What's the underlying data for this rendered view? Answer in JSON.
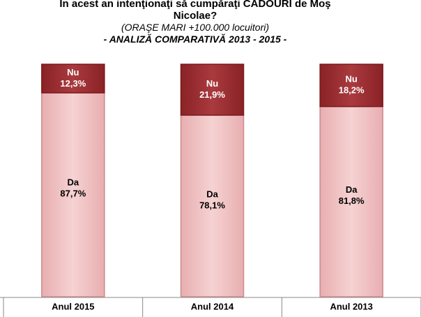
{
  "chart_data": {
    "type": "stacked-bar",
    "title": "În acest an intenţionaţi să cumpăraţi CADOURI de Moş Nicolae?",
    "subtitle": "(ORAŞE MARI +100.000 locuitori)",
    "annotation": "- ANALIZĂ COMPARATIVĂ 2013 - 2015 -",
    "categories": [
      "Anul 2015",
      "Anul 2014",
      "Anul 2013"
    ],
    "series": [
      {
        "name": "Da",
        "color": "#f2c4c4",
        "values": [
          87.7,
          78.1,
          81.8
        ],
        "value_labels": [
          "87,7%",
          "78,1%",
          "81,8%"
        ]
      },
      {
        "name": "Nu",
        "color": "#9e2f33",
        "values": [
          12.3,
          21.9,
          18.2
        ],
        "value_labels": [
          "12,3%",
          "21,9%",
          "18,2%"
        ]
      }
    ]
  }
}
